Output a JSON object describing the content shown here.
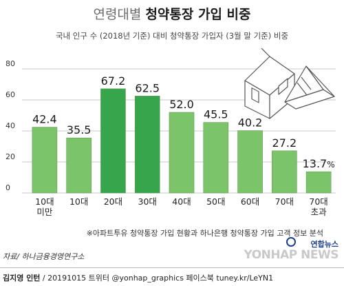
{
  "title_light": "연령대별",
  "title_bold": "청약통장 가입 비중",
  "subtitle": "국내 인구 수 (2018년 기준) 대비 청약통장 가입자 (3월 말 기준) 비중",
  "note": "※아파트투유 청약통장 가입 현황과 하나은행 청약통장 가입 고객 정보 분석",
  "source": "자료/ 하나금융경영연구소",
  "footer": {
    "author": "김지영 인턴",
    "rest": " / 20191015  트위터 @yonhap_graphics  페이스북 tuney.kr/LeYN1"
  },
  "brand": {
    "korean": "연합뉴스",
    "english": "YONHAP NEWS"
  },
  "colors": {
    "bar": "#7cc46a",
    "bar_highlight": "#36a54b",
    "bar_stroke": "#5e9b50",
    "text": "#1a1a1a"
  },
  "icons": [
    "house-icon",
    "passbook-icon"
  ],
  "chart_data": {
    "type": "bar",
    "categories": [
      [
        "10대",
        "미만"
      ],
      [
        "10대"
      ],
      [
        "20대"
      ],
      [
        "30대"
      ],
      [
        "40대"
      ],
      [
        "50대"
      ],
      [
        "60대"
      ],
      [
        "70대"
      ],
      [
        "70대",
        "초과"
      ]
    ],
    "values": [
      42.4,
      35.5,
      67.2,
      62.5,
      52.0,
      45.5,
      40.2,
      27.2,
      13.7
    ],
    "value_labels": [
      "42.4",
      "35.5",
      "67.2",
      "62.5",
      "52.0",
      "45.5",
      "40.2",
      "27.2",
      "13.7"
    ],
    "unit": "%",
    "highlight": [
      2,
      3
    ],
    "yticks": [
      "80",
      "60",
      "40",
      "20",
      "0"
    ],
    "ylim": [
      0,
      80
    ],
    "grid": true
  }
}
